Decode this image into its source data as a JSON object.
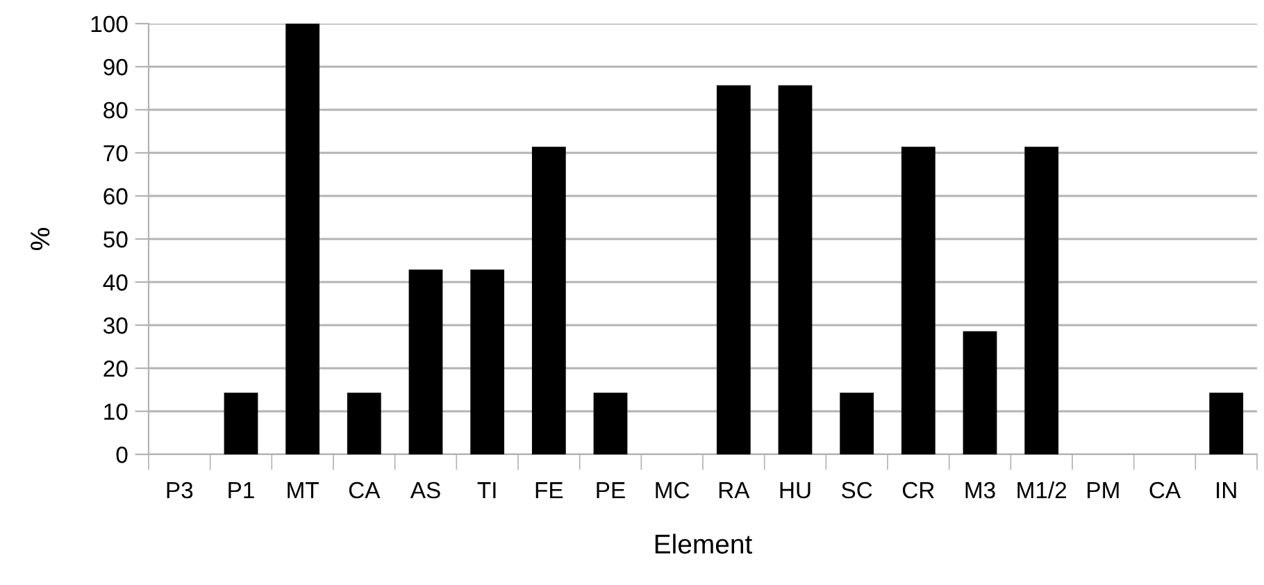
{
  "chart_data": {
    "type": "bar",
    "xlabel": "Element",
    "ylabel": "%",
    "categories": [
      "P3",
      "P1",
      "MT",
      "CA",
      "AS",
      "TI",
      "FE",
      "PE",
      "MC",
      "RA",
      "HU",
      "SC",
      "CR",
      "M3",
      "M1/2",
      "PM",
      "CA",
      "IN"
    ],
    "values": [
      0,
      14.3,
      100,
      14.3,
      42.9,
      42.9,
      71.4,
      14.3,
      0,
      85.7,
      85.7,
      14.3,
      71.4,
      28.6,
      71.4,
      0,
      0,
      14.3
    ],
    "color": "#000000",
    "ylim": [
      0,
      100
    ],
    "yticks": [
      0,
      10,
      20,
      30,
      40,
      50,
      60,
      70,
      80,
      90,
      100
    ],
    "grid": "y"
  }
}
